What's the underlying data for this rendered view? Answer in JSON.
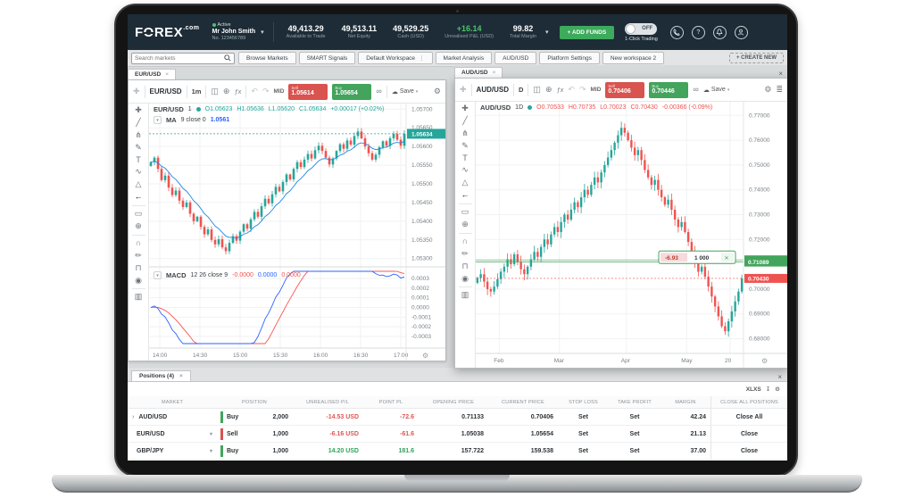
{
  "header": {
    "logo_f": "F",
    "logo_o": "O",
    "logo_rest": "REX",
    "logo_tld": ".com",
    "status": "Active",
    "account_name": "Mr John Smith",
    "account_no": "No. 123456789",
    "stats": [
      {
        "value": "49,413.29",
        "label": "Available to Trade",
        "color": "#ffffff"
      },
      {
        "value": "49,513.11",
        "label": "Net Equity",
        "color": "#ffffff"
      },
      {
        "value": "49,529.25",
        "label": "Cash (USD)",
        "color": "#ffffff"
      },
      {
        "value": "+16.14",
        "label": "Unrealised P&L (USD)",
        "color": "#4cc36a"
      },
      {
        "value": "99.82",
        "label": "Total Margin",
        "color": "#ffffff"
      }
    ],
    "add_funds": "+ ADD FUNDS",
    "toggle_state": "OFF",
    "toggle_caption": "1-Click Trading"
  },
  "wsbar": {
    "search_placeholder": "Search markets",
    "tabs": [
      "Browse Markets",
      "SMART Signals",
      "Default Workspace",
      "Market Analysis",
      "AUD/USD",
      "Platform Settings",
      "New workspace 2"
    ],
    "create_new": "+ CREATE NEW"
  },
  "icons": {
    "crosshair": "✚",
    "candles": "◫",
    "compare": "⊕",
    "fx": "ƒx",
    "undo": "↶",
    "redo": "↷",
    "link": "∞",
    "cloud": "☁",
    "gear": "⚙",
    "layers": "≣",
    "caret": "▾",
    "kebab": "⋮",
    "download": "↧",
    "search": "⌕"
  },
  "chart_tools": [
    {
      "name": "crosshair-tool",
      "glyph": "✚"
    },
    {
      "name": "trend-line-tool",
      "glyph": "╱"
    },
    {
      "name": "pitchfork-tool",
      "glyph": "⋔"
    },
    {
      "name": "brush-tool",
      "glyph": "✎"
    },
    {
      "name": "text-tool",
      "glyph": "T"
    },
    {
      "name": "pattern-tool",
      "glyph": "∿"
    },
    {
      "name": "forecast-tool",
      "glyph": "△"
    },
    {
      "name": "arrow-tool",
      "glyph": "←",
      "active": true
    },
    {
      "type": "divider"
    },
    {
      "name": "measure-tool",
      "glyph": "▭"
    },
    {
      "name": "zoom-in-tool",
      "glyph": "⊕"
    },
    {
      "type": "divider"
    },
    {
      "name": "magnet-tool",
      "glyph": "∩"
    },
    {
      "name": "draw-lock-tool",
      "glyph": "✏"
    },
    {
      "name": "lock-tool",
      "glyph": "⊓"
    },
    {
      "name": "show-hide-tool",
      "glyph": "◉"
    },
    {
      "type": "divider"
    },
    {
      "name": "remove-drawings-tool",
      "glyph": "▥"
    }
  ],
  "eur_window": {
    "tab": "EUR/USD",
    "timeframe": "1m",
    "mid": "MID",
    "sell_label": "Sell",
    "sell": "1.05614",
    "buy_label": "Buy",
    "buy": "1.05654",
    "save": "Save",
    "legend": {
      "symbol": "EUR/USD",
      "tf": "1",
      "o": "O1.05623",
      "h": "H1.05636",
      "l": "L1.05620",
      "c": "C1.05634",
      "chg": "+0.00017 (+0.02%)"
    },
    "ma_legend": {
      "name": "MA",
      "params": "9 close 0",
      "value": "1.0561"
    },
    "macd_legend": {
      "name": "MACD",
      "params": "12 26 close 9",
      "v1": "-0.0000",
      "v2": "0.0000",
      "v3": "0.0000"
    }
  },
  "aud_window": {
    "tab": "AUD/USD",
    "timeframe": "D",
    "mid": "MID",
    "sell_label": "Sell",
    "sell": "0.70406",
    "buy_label": "Buy",
    "buy": "0.70446",
    "save": "Save",
    "legend": {
      "symbol": "AUD/USD",
      "tf": "1D",
      "o": "O0.70533",
      "h": "H0.70735",
      "l": "L0.70023",
      "c": "C0.70430",
      "chg": "-0.00366 (-0.09%)"
    }
  },
  "positions": {
    "tab": "Positions (4)",
    "export_label": "XLXS",
    "headers": [
      "MARKET",
      "POSITION",
      "UNREALISED P/L",
      "POINT PL",
      "OPENING PRICE",
      "CURRENT PRICE",
      "STOP LOSS",
      "TAKE PROFIT",
      "MARGIN",
      "CLOSE ALL POSITIONS"
    ],
    "rows": [
      {
        "expand": "›",
        "market": "AUD/USD",
        "dropdown": "",
        "side": "Buy",
        "side_color": "green",
        "qty": "2,000",
        "upl": "-14.53 USD",
        "upl_sign": "neg",
        "ppl": "-72.6",
        "ppl_sign": "neg",
        "open": "0.71133",
        "current": "0.70406",
        "sl": "Set",
        "tp": "Set",
        "margin": "42.24",
        "close": "Close All"
      },
      {
        "expand": "",
        "market": "EUR/USD",
        "dropdown": "▾",
        "side": "Sell",
        "side_color": "red",
        "qty": "1,000",
        "upl": "-6.16 USD",
        "upl_sign": "neg",
        "ppl": "-61.6",
        "ppl_sign": "neg",
        "open": "1.05038",
        "current": "1.05654",
        "sl": "Set",
        "tp": "Set",
        "margin": "21.13",
        "close": "Close"
      },
      {
        "expand": "",
        "market": "GBP/JPY",
        "dropdown": "▾",
        "side": "Buy",
        "side_color": "green",
        "qty": "1,000",
        "upl": "14.20 USD",
        "upl_sign": "pos",
        "ppl": "181.6",
        "ppl_sign": "pos",
        "open": "157.722",
        "current": "159.538",
        "sl": "Set",
        "tp": "Set",
        "margin": "37.00",
        "close": "Close"
      }
    ]
  },
  "chart_data": [
    {
      "id": "eurusd_main",
      "type": "candlestick",
      "title": "EUR/USD 1m",
      "x_labels": [
        "14:00",
        "14:30",
        "15:00",
        "15:30",
        "16:00",
        "16:30",
        "17:00"
      ],
      "y_ticks": [
        "1.05700",
        "1.05650",
        "1.05600",
        "1.05550",
        "1.05500",
        "1.05450",
        "1.05400",
        "1.05350",
        "1.05300"
      ],
      "y_range": [
        1.05285,
        1.05715
      ],
      "last_price": 1.05634,
      "last_price_label": "1.05634",
      "ma_period": 9,
      "closes": [
        1.05558,
        1.0557,
        1.0554,
        1.0551,
        1.05522,
        1.0549,
        1.0547,
        1.05482,
        1.05455,
        1.05438,
        1.0545,
        1.0542,
        1.054,
        1.05412,
        1.05385,
        1.05365,
        1.05378,
        1.0535,
        1.05338,
        1.05352,
        1.0533,
        1.0532,
        1.05342,
        1.0536,
        1.05348,
        1.05372,
        1.05392,
        1.0538,
        1.05405,
        1.05425,
        1.05412,
        1.0544,
        1.0546,
        1.05448,
        1.05472,
        1.05492,
        1.0548,
        1.05505,
        1.05525,
        1.05512,
        1.0554,
        1.05558,
        1.05545,
        1.05565,
        1.0558,
        1.05568,
        1.0559,
        1.05602,
        1.05588,
        1.0557,
        1.05552,
        1.05568,
        1.05588,
        1.05606,
        1.05594,
        1.05616,
        1.05605,
        1.05628,
        1.0564,
        1.05622,
        1.056,
        1.05582,
        1.05565,
        1.05578,
        1.05598,
        1.05614,
        1.05602,
        1.05622,
        1.05634,
        1.05618,
        1.05602,
        1.05634
      ],
      "colors": {
        "up": "#26a69a",
        "down": "#ef5350",
        "ma": "#1e88e5",
        "tag": "#26a69a"
      }
    },
    {
      "id": "eurusd_macd",
      "type": "line",
      "title": "MACD 12 26 close 9",
      "y_ticks": [
        "0.0003",
        "0.0002",
        "0.0001",
        "0.0000",
        "-0.0001",
        "-0.0002",
        "-0.0003"
      ],
      "colors": {
        "macd": "#2962ff",
        "signal": "#ff5252"
      }
    },
    {
      "id": "audusd_main",
      "type": "candlestick",
      "title": "AUD/USD 1D",
      "x_labels": [
        "Feb",
        "Mar",
        "Apr",
        "May",
        "20"
      ],
      "x_label_idx": [
        7,
        25,
        45,
        63,
        76
      ],
      "y_ticks": [
        "0.77000",
        "0.76000",
        "0.75000",
        "0.74000",
        "0.73000",
        "0.72000",
        "0.70000",
        "0.69000",
        "0.68000"
      ],
      "y_range": [
        0.6755,
        0.7755
      ],
      "levels": [
        {
          "price": 0.71176,
          "label": "0.71176",
          "color": "#43a45c",
          "style": "solid"
        },
        {
          "price": 0.71089,
          "label": "0.71089",
          "color": "#43a45c",
          "style": "solid"
        },
        {
          "price": 0.7043,
          "label": "0.70430",
          "color": "#ef5350",
          "style": "dotted"
        }
      ],
      "position_tag": {
        "pl": "-6.93",
        "qty": "1 000",
        "close": "✕"
      },
      "closes": [
        0.7045,
        0.706,
        0.703,
        0.7,
        0.699,
        0.701,
        0.704,
        0.707,
        0.709,
        0.712,
        0.71,
        0.714,
        0.711,
        0.708,
        0.706,
        0.709,
        0.712,
        0.715,
        0.713,
        0.717,
        0.72,
        0.718,
        0.722,
        0.725,
        0.723,
        0.727,
        0.73,
        0.728,
        0.732,
        0.735,
        0.733,
        0.737,
        0.74,
        0.738,
        0.742,
        0.745,
        0.743,
        0.747,
        0.75,
        0.753,
        0.756,
        0.759,
        0.762,
        0.765,
        0.763,
        0.76,
        0.757,
        0.754,
        0.756,
        0.752,
        0.748,
        0.745,
        0.742,
        0.744,
        0.74,
        0.737,
        0.734,
        0.736,
        0.732,
        0.728,
        0.725,
        0.727,
        0.723,
        0.719,
        0.715,
        0.711,
        0.707,
        0.709,
        0.705,
        0.701,
        0.697,
        0.693,
        0.689,
        0.685,
        0.683,
        0.687,
        0.691,
        0.695,
        0.699,
        0.7043
      ],
      "colors": {
        "up": "#26a69a",
        "down": "#ef5350"
      }
    }
  ]
}
